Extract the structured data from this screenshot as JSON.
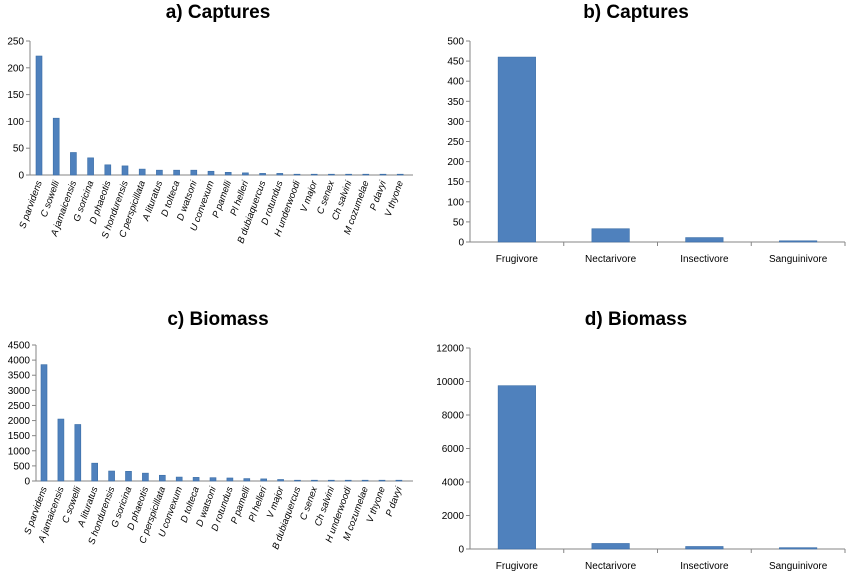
{
  "chart_data": [
    {
      "panel": "a",
      "type": "bar",
      "title": "a) Captures",
      "xlabel": "",
      "ylabel": "",
      "ylim": [
        0,
        250
      ],
      "yticks": [
        0,
        50,
        100,
        150,
        200,
        250
      ],
      "grid": false,
      "bar_color": "#4f81bd",
      "categories": [
        "S parvidens",
        "C sowelli",
        "A jamaicensis",
        "G soricina",
        "D phaeotis",
        "S hondurensis",
        "C perspicillata",
        "A lituratus",
        "D tolteca",
        "D watsoni",
        "U convexum",
        "P pamelli",
        "Pl helleri",
        "B dubiaquercus",
        "D rotundus",
        "H underwoodi",
        "V major",
        "C senex",
        "Ch salvini",
        "M cozumelae",
        "P davyi",
        "V thyone"
      ],
      "values": [
        222,
        106,
        42,
        32,
        19,
        17,
        11,
        9,
        9,
        9,
        7,
        5,
        4,
        3,
        3,
        1,
        1,
        1,
        1,
        1,
        1,
        1
      ]
    },
    {
      "panel": "b",
      "type": "bar",
      "title": "b) Captures",
      "xlabel": "",
      "ylabel": "",
      "ylim": [
        0,
        500
      ],
      "yticks": [
        0,
        50,
        100,
        150,
        200,
        250,
        300,
        350,
        400,
        450,
        500
      ],
      "grid": false,
      "bar_color": "#4f81bd",
      "categories": [
        "Frugivore",
        "Nectarivore",
        "Insectivore",
        "Sanguinivore"
      ],
      "values": [
        460,
        33,
        11,
        3
      ]
    },
    {
      "panel": "c",
      "type": "bar",
      "title": "c) Biomass",
      "xlabel": "",
      "ylabel": "",
      "ylim": [
        0,
        4500
      ],
      "yticks": [
        0,
        500,
        1000,
        1500,
        2000,
        2500,
        3000,
        3500,
        4000,
        4500
      ],
      "grid": false,
      "bar_color": "#4f81bd",
      "categories": [
        "S parvidens",
        "A jamaicensis",
        "C sowelli",
        "A lituratus",
        "S hondurensis",
        "G soricina",
        "D phaeotis",
        "C perspicillata",
        "U convexum",
        "D tolteca",
        "D watsoni",
        "D rotundus",
        "P pamelli",
        "Pl helleri",
        "V major",
        "B dubiaquercus",
        "C senex",
        "Ch salvini",
        "H underwoodi",
        "M cozumelae",
        "V thyone",
        "P davyi"
      ],
      "values": [
        3850,
        2050,
        1870,
        590,
        330,
        320,
        260,
        190,
        130,
        120,
        110,
        100,
        80,
        70,
        50,
        20,
        10,
        10,
        10,
        5,
        5,
        5
      ]
    },
    {
      "panel": "d",
      "type": "bar",
      "title": "d) Biomass",
      "xlabel": "",
      "ylabel": "",
      "ylim": [
        0,
        12000
      ],
      "yticks": [
        0,
        2000,
        4000,
        6000,
        8000,
        10000,
        12000
      ],
      "grid": false,
      "bar_color": "#4f81bd",
      "categories": [
        "Frugivore",
        "Nectarivore",
        "Insectivore",
        "Sanguinivore"
      ],
      "values": [
        9750,
        330,
        150,
        80
      ]
    }
  ]
}
